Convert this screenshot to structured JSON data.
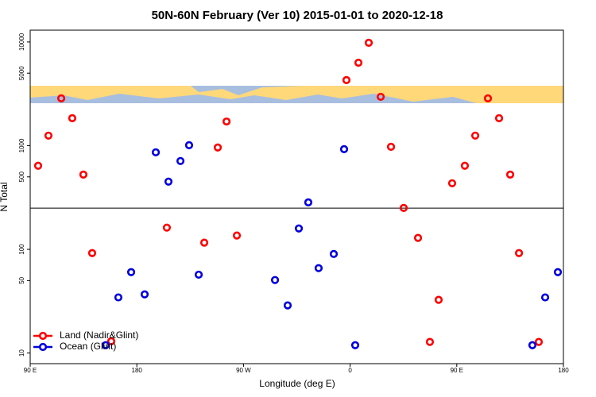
{
  "chart_data": {
    "type": "scatter",
    "title": "50N-60N February (Ver 10)   2015-01-01 to 2020-12-18",
    "x_label": "Longitude (deg E)",
    "y_label": "N Total",
    "log_y": true,
    "xlim": [
      90,
      540
    ],
    "xticks": [
      {
        "value": 90,
        "label": "90 E"
      },
      {
        "value": 180,
        "label": "180"
      },
      {
        "value": 270,
        "label": "90 W"
      },
      {
        "value": 360,
        "label": "0"
      },
      {
        "value": 450,
        "label": "90 E"
      },
      {
        "value": 540,
        "label": "180"
      }
    ],
    "ylim": [
      7.9,
      13000
    ],
    "yticks": [
      10,
      50,
      100,
      500,
      1000,
      5000,
      10000
    ],
    "reference_line": 250,
    "legend": "bottom-left",
    "series": [
      {
        "name": "Land (Nadir&Glint)",
        "color": "#ff0000",
        "x": [
          96.7,
          105.4,
          116.2,
          125.5,
          134.9,
          142.3,
          158.4,
          205.3,
          236.9,
          248.3,
          255.7,
          264.4,
          356.9,
          367,
          375.7,
          385.8,
          394.5,
          405.2,
          417.3,
          427.3,
          434.7,
          446.1,
          456.8,
          465.6,
          476.3,
          485.7,
          495.1,
          502.5,
          519.2
        ],
        "values": [
          640,
          1250,
          2860,
          1840,
          526,
          92,
          13,
          162,
          116,
          960,
          1710,
          136,
          4290,
          6310,
          9820,
          2960,
          975,
          251,
          129,
          12.8,
          32.6,
          434,
          640,
          1250,
          2860,
          1840,
          526,
          92,
          12.8
        ]
      },
      {
        "name": "Ocean (Glint)",
        "color": "#0000e0",
        "x": [
          153.7,
          164.4,
          175.2,
          186.6,
          196,
          206.7,
          216.8,
          224.1,
          232.2,
          296.6,
          307.3,
          316.7,
          324.7,
          333.4,
          346.2,
          354.9,
          364.3,
          513.8,
          524.6,
          535.3
        ],
        "values": [
          11.9,
          34.4,
          60.3,
          36.8,
          863,
          450,
          711,
          1010,
          57,
          50.6,
          28.8,
          159,
          284,
          65.9,
          90.3,
          925,
          11.9,
          11.9,
          34.4,
          60.3
        ]
      }
    ]
  }
}
